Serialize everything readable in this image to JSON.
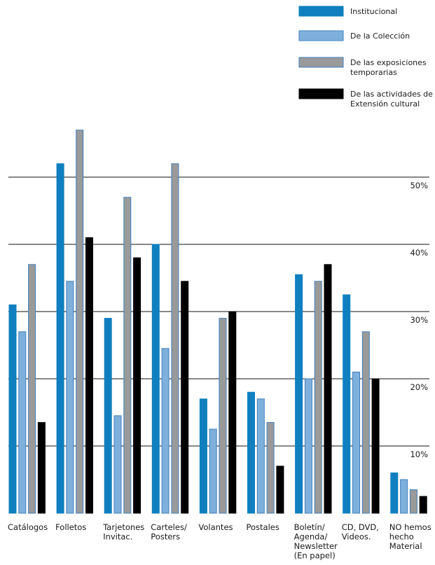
{
  "chart_data": {
    "type": "bar",
    "title": "",
    "xlabel": "",
    "ylabel": "",
    "ylim": [
      0,
      60
    ],
    "y_ticks": [
      10,
      20,
      30,
      40,
      50
    ],
    "y_tick_suffix": "%",
    "grid": true,
    "legend_position": "top-right",
    "categories": [
      [
        "Catálogos"
      ],
      [
        "Folletos"
      ],
      [
        "Tarjetones",
        "Invitac."
      ],
      [
        "Carteles/",
        "Posters"
      ],
      [
        "Volantes"
      ],
      [
        "Postales"
      ],
      [
        "Boletín/",
        "Agenda/",
        "Newsletter",
        "(En papel)"
      ],
      [
        "CD, DVD,",
        "Videos."
      ],
      [
        "NO hemos",
        "hecho",
        "Material"
      ]
    ],
    "series": [
      {
        "name": [
          "Institucional"
        ],
        "color": "#0f7fbf",
        "border": "#0f7fbf",
        "values": [
          31,
          52,
          29,
          40,
          17,
          18,
          35.5,
          32.5,
          6
        ]
      },
      {
        "name": [
          "De la Colección"
        ],
        "color": "#7fb0dc",
        "border": "#3f7fbf",
        "values": [
          27,
          34.5,
          14.5,
          24.5,
          12.5,
          17,
          20,
          21,
          5
        ]
      },
      {
        "name": [
          "De las exposiciones",
          "temporarias"
        ],
        "color": "#9a9a9a",
        "border": "#3f7fbf",
        "values": [
          37,
          57,
          47,
          52,
          29,
          13.5,
          34.5,
          27,
          3.5
        ]
      },
      {
        "name": [
          "De las actividades de",
          "Extensión cultural"
        ],
        "color": "#000000",
        "border": "#000000",
        "values": [
          13.5,
          41,
          38,
          34.5,
          30,
          7,
          37,
          20,
          2.5
        ]
      }
    ]
  }
}
